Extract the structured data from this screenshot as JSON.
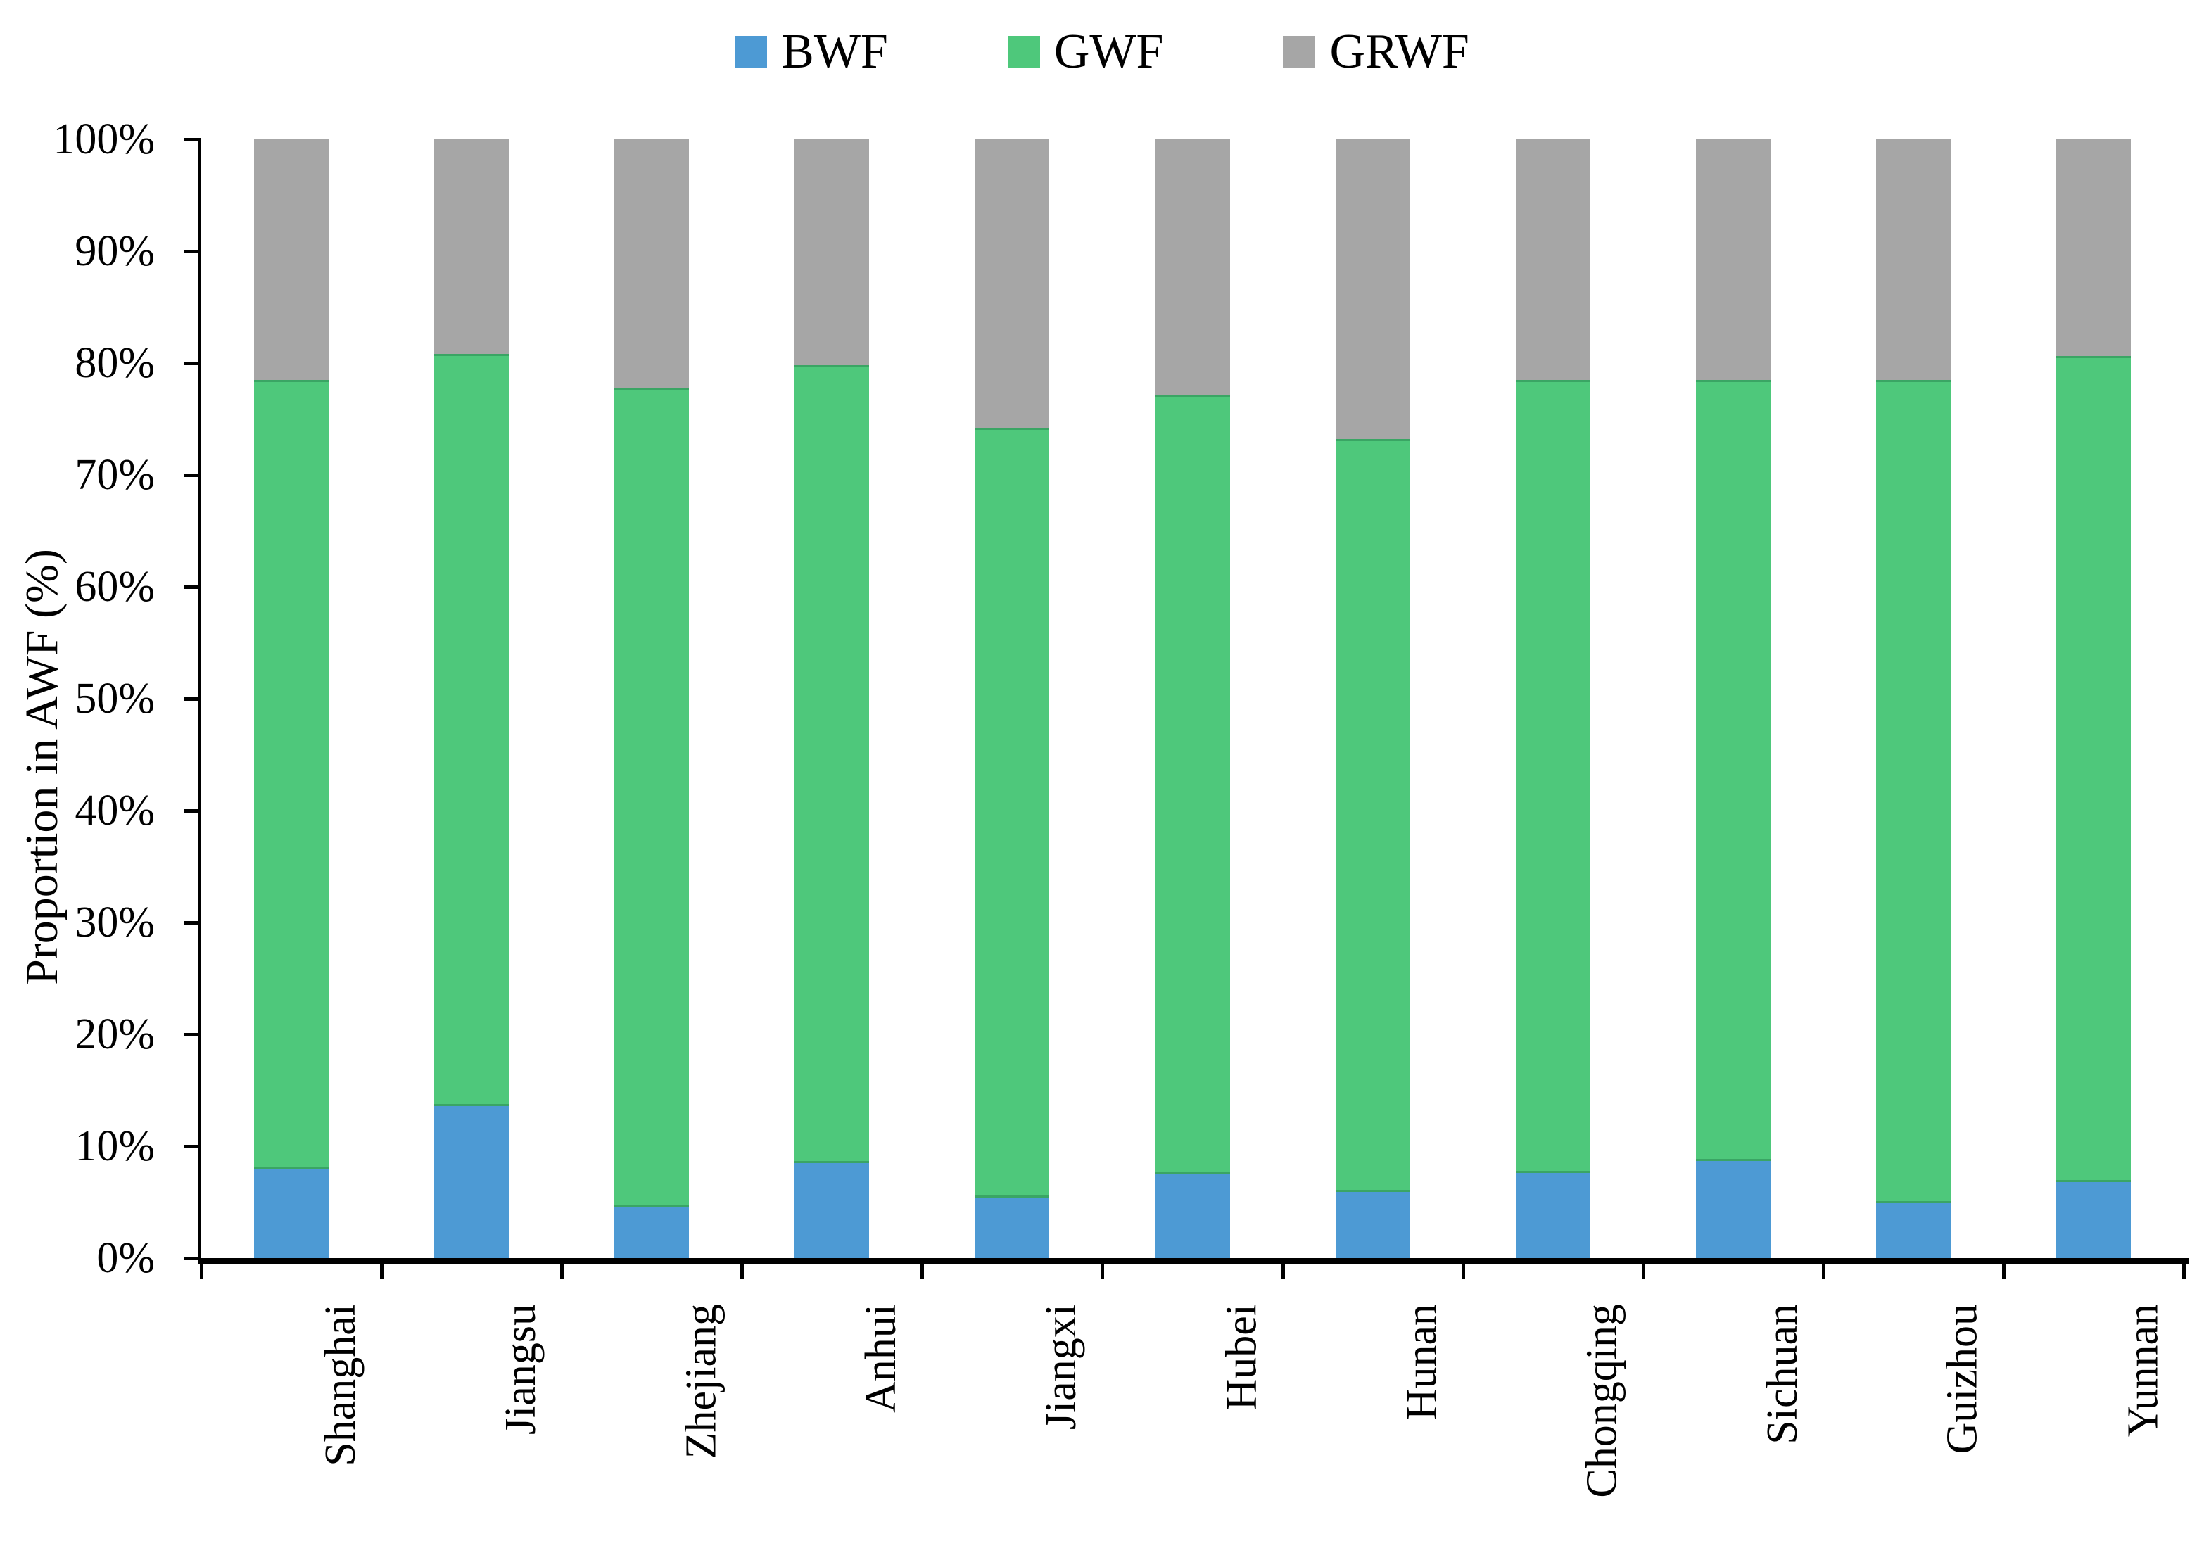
{
  "page": {
    "background": "#ffffff"
  },
  "chart_data": {
    "type": "bar",
    "stacking": "percent",
    "title": "",
    "xlabel": "",
    "ylabel": "Proportion in AWF (%)",
    "ylim": [
      0,
      100
    ],
    "ytick_step": 10,
    "ytick_labels": [
      "0%",
      "10%",
      "20%",
      "30%",
      "40%",
      "50%",
      "60%",
      "70%",
      "80%",
      "90%",
      "100%"
    ],
    "grid": false,
    "legend_position": "top",
    "axis_color": "#000000",
    "categories": [
      "Shanghai",
      "Jiangsu",
      "Zhejiang",
      "Anhui",
      "Jiangxi",
      "Hubei",
      "Hunan",
      "Chongqing",
      "Sichuan",
      "Guizhou",
      "Yunnan"
    ],
    "series": [
      {
        "name": "BWF",
        "color": "#4D9AD4",
        "values": [
          7.9,
          13.6,
          4.5,
          8.5,
          5.4,
          7.5,
          5.9,
          7.6,
          8.7,
          4.9,
          6.8
        ]
      },
      {
        "name": "GWF",
        "color": "#4EC87B",
        "border_color": "#3AA564",
        "values": [
          70.6,
          67.2,
          73.3,
          71.3,
          68.8,
          69.7,
          67.3,
          70.9,
          69.8,
          73.6,
          73.8
        ]
      },
      {
        "name": "GRWF",
        "color": "#A6A6A6",
        "values": [
          21.5,
          19.2,
          22.2,
          20.2,
          25.8,
          22.8,
          26.8,
          21.5,
          21.5,
          21.5,
          19.4
        ]
      }
    ]
  }
}
